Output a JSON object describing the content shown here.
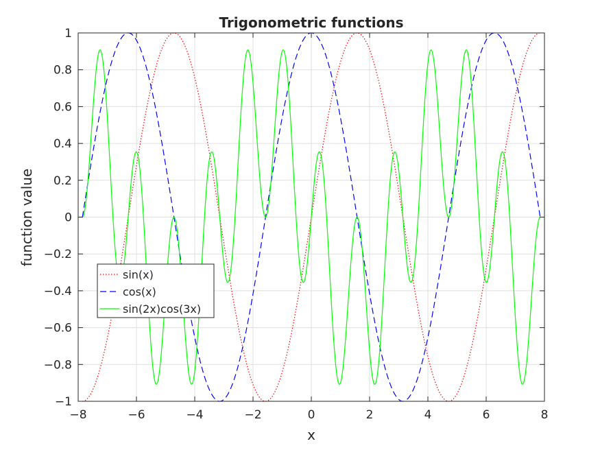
{
  "chart_data": {
    "type": "line",
    "title": "Trigonometric functions",
    "xlabel": "x",
    "ylabel": "function value",
    "xlim": [
      -8,
      8
    ],
    "ylim": [
      -1,
      1
    ],
    "grid": true,
    "legend_position": "lower-left",
    "x_ticks": [
      -8,
      -6,
      -4,
      -2,
      0,
      2,
      4,
      6,
      8
    ],
    "x_tick_labels": [
      "−8",
      "−6",
      "−4",
      "−2",
      "0",
      "2",
      "4",
      "6",
      "8"
    ],
    "y_ticks": [
      -1,
      -0.8,
      -0.6,
      -0.4,
      -0.2,
      0,
      0.2,
      0.4,
      0.6,
      0.8,
      1
    ],
    "y_tick_labels": [
      "−1",
      "−0.8",
      "−0.6",
      "−0.4",
      "−0.2",
      "0",
      "0.2",
      "0.4",
      "0.6",
      "0.8",
      "1"
    ],
    "x_domain": [
      -7.854,
      7.854
    ],
    "series": [
      {
        "name": "sin(x)",
        "function": "sin(x)",
        "color": "#ff0000",
        "style": "dotted"
      },
      {
        "name": "cos(x)",
        "function": "cos(x)",
        "color": "#0000ff",
        "style": "dashed"
      },
      {
        "name": "sin(2x)cos(3x)",
        "function": "sin(2x)cos(3x)",
        "color": "#00ff00",
        "style": "solid"
      }
    ]
  }
}
